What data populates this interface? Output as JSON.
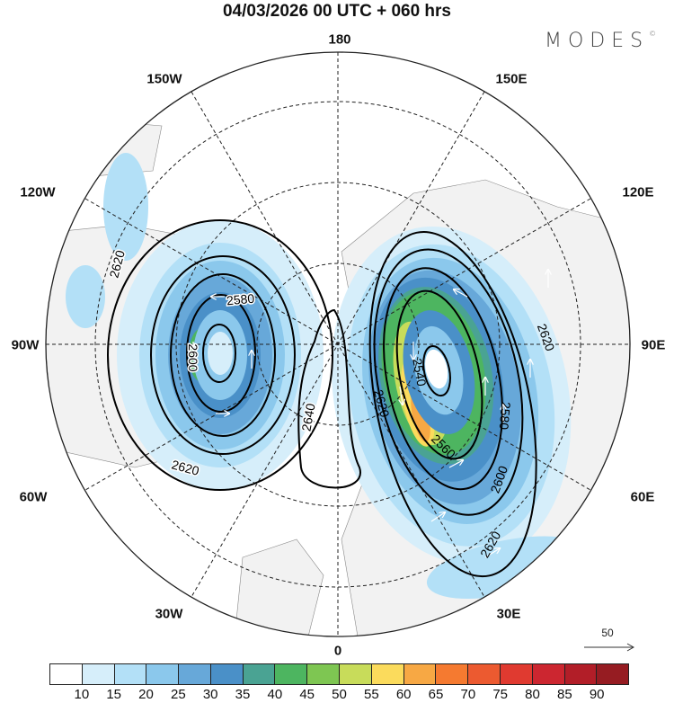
{
  "title": "04/03/2026  00 UTC  + 060 hrs",
  "logo": {
    "text": "MODES",
    "mark": "©"
  },
  "longitude_labels": {
    "top": "180",
    "bottom": "0",
    "left": "90W",
    "right": "90E",
    "nw1": "150W",
    "nw2": "120W",
    "ne1": "150E",
    "ne2": "120E",
    "sw1": "60W",
    "sw2": "30W",
    "se1": "60E",
    "se2": "30E"
  },
  "contour_labels": {
    "l1": "2620",
    "l2": "2580",
    "l3": "2600",
    "l4": "2620",
    "l5": "2640",
    "r1": "2540",
    "r2": "2620",
    "r3": "2560",
    "r4": "2580",
    "r5": "2600",
    "r6": "2620",
    "r7": "2620"
  },
  "reference_vector": {
    "label": "50"
  },
  "colorbar": {
    "ticks": [
      "10",
      "15",
      "20",
      "25",
      "30",
      "35",
      "40",
      "45",
      "50",
      "55",
      "60",
      "65",
      "70",
      "75",
      "80",
      "85",
      "90"
    ],
    "colors": [
      "#ffffff",
      "#d6eefa",
      "#b3e0f7",
      "#8bc8ec",
      "#67a8d9",
      "#4a90c8",
      "#4aa393",
      "#4db560",
      "#7ec652",
      "#c8dc5a",
      "#fbdb5c",
      "#f7a844",
      "#f57a30",
      "#ec5a30",
      "#e03a30",
      "#cc2630",
      "#b21e28",
      "#961c22"
    ]
  }
}
